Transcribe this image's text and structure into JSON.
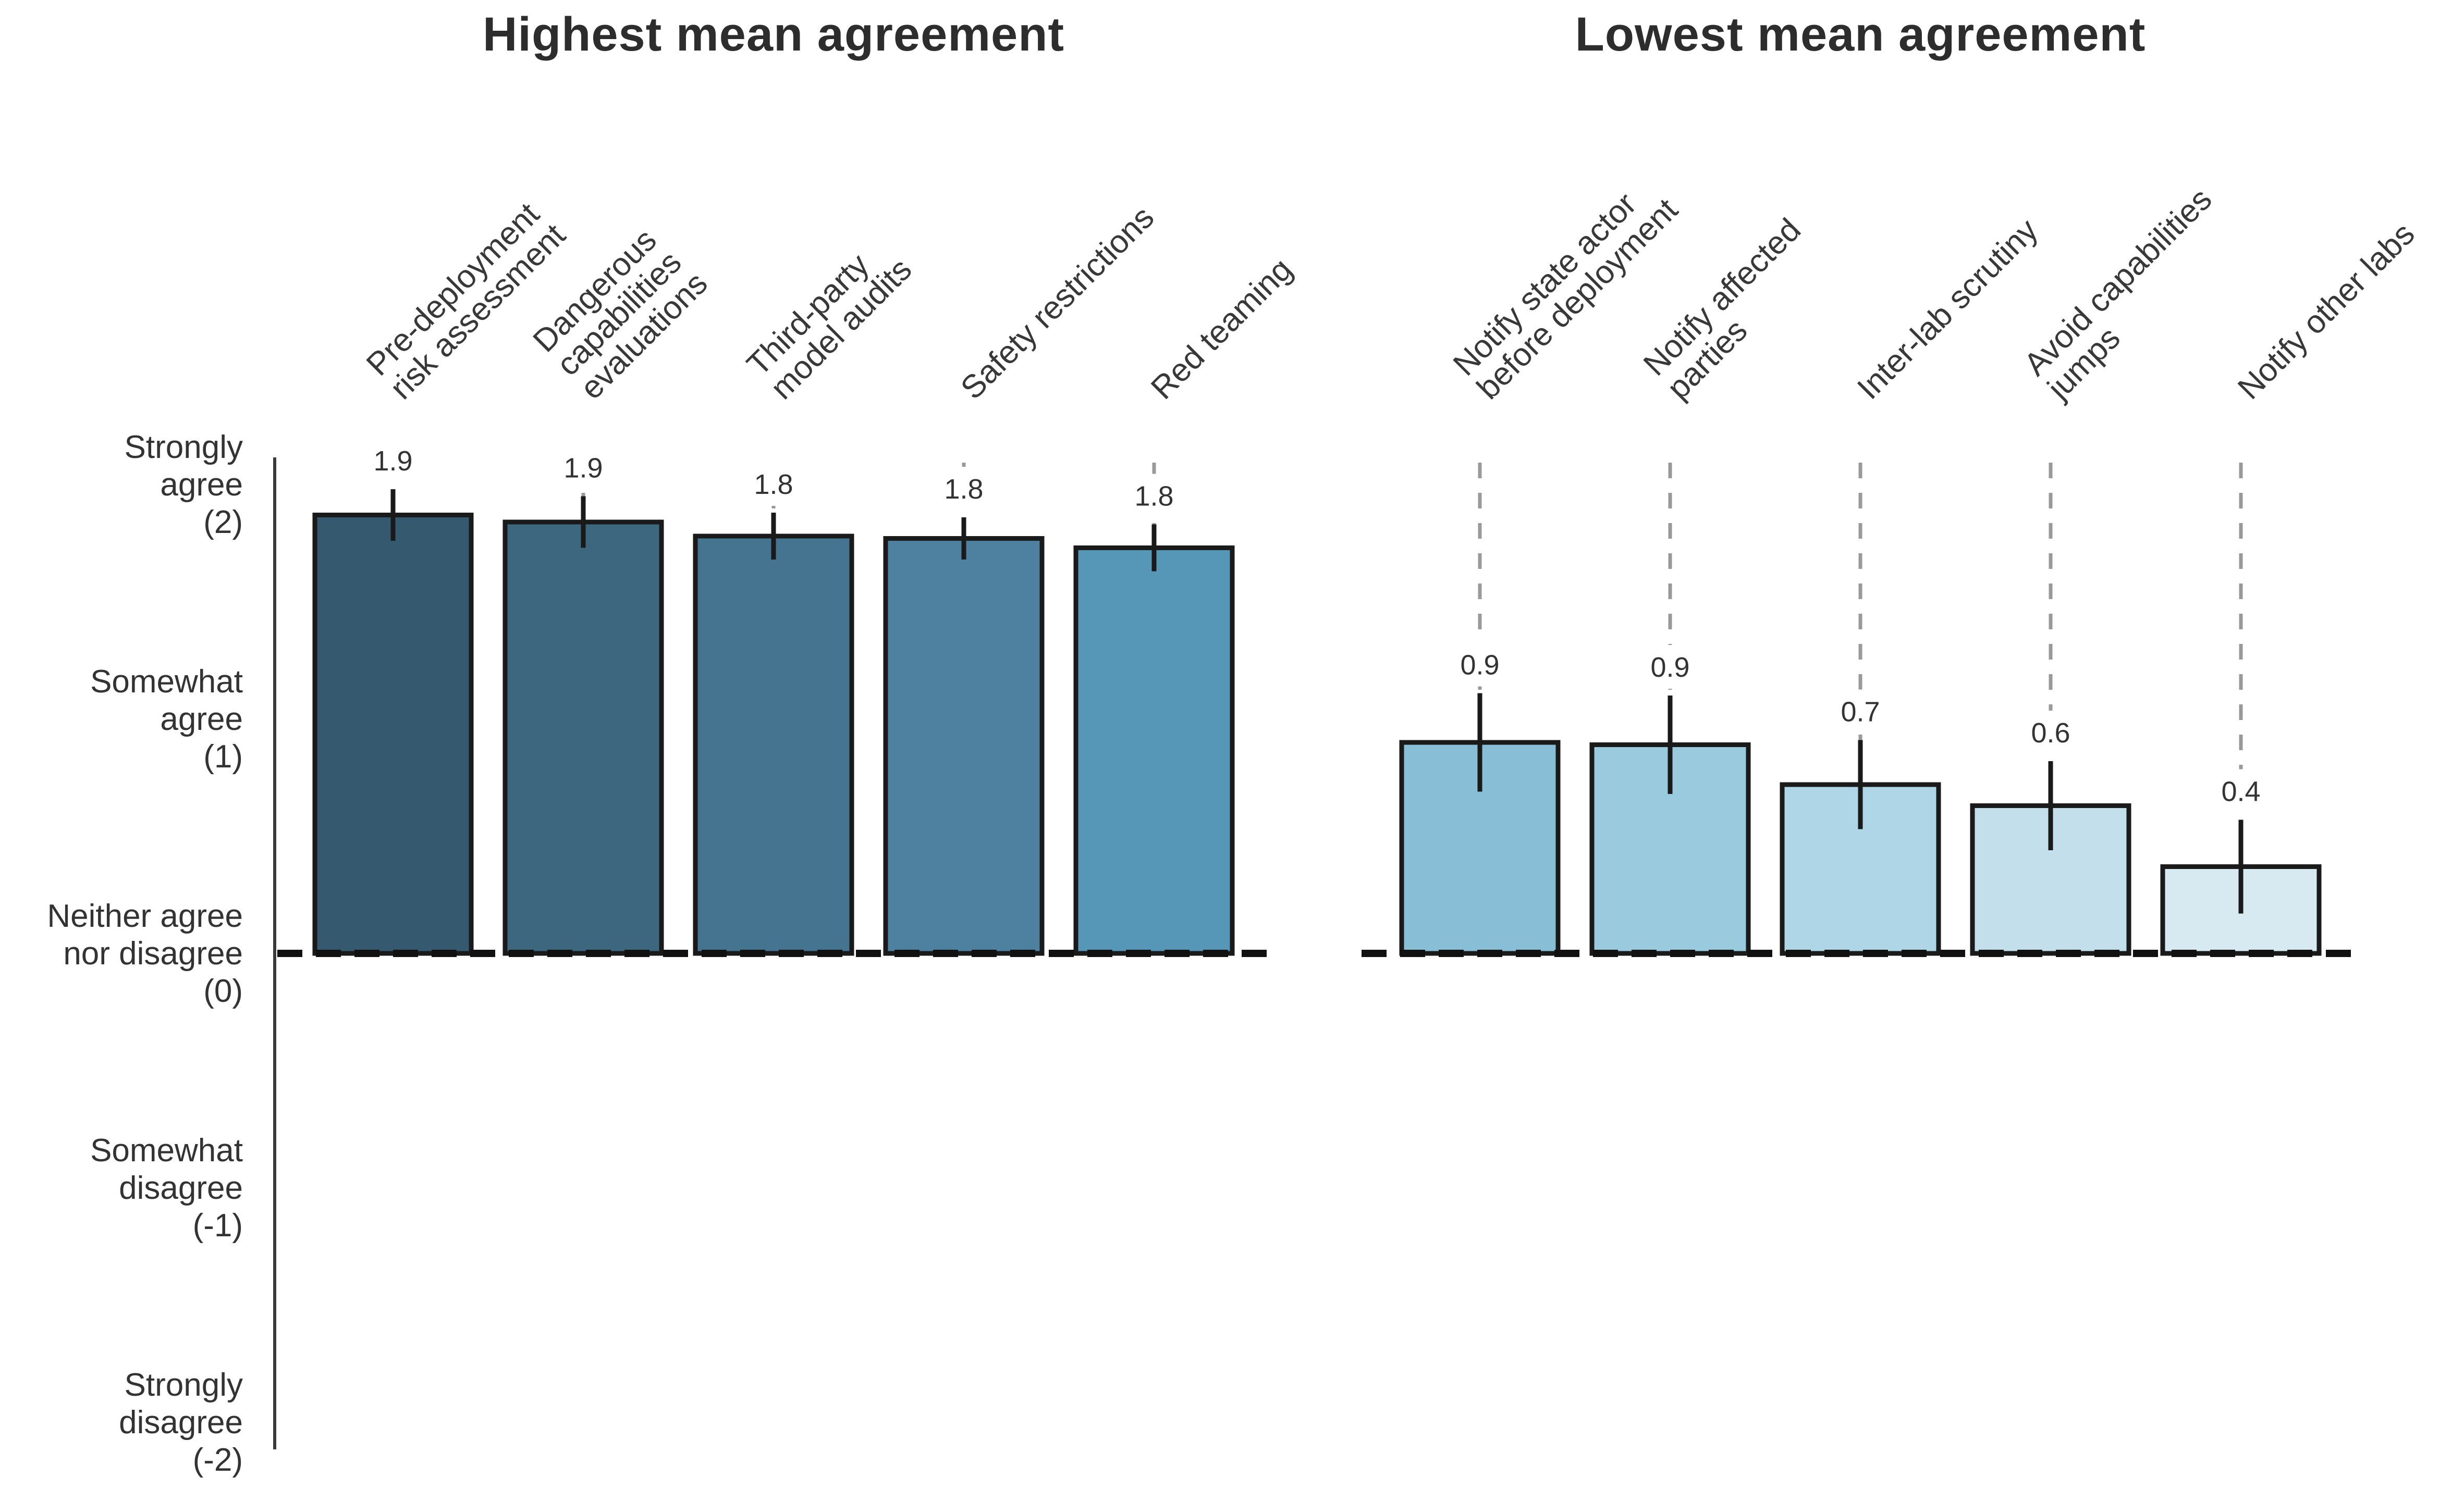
{
  "page": {
    "background": "#ffffff"
  },
  "chart_data": {
    "type": "bar",
    "layout": "two-panel horizontal, shared likert y-axis on left, grid off, no legend",
    "y_axis": {
      "ylim": [
        -2.15,
        2.15
      ],
      "baseline": 0,
      "ticks": [
        {
          "value": 2,
          "lines": [
            "Strongly",
            "agree",
            "(2)"
          ]
        },
        {
          "value": 1,
          "lines": [
            "Somewhat",
            "agree",
            "(1)"
          ]
        },
        {
          "value": 0,
          "lines": [
            "Neither agree",
            "nor disagree",
            "(0)"
          ]
        },
        {
          "value": -1,
          "lines": [
            "Somewhat",
            "disagree",
            "(-1)"
          ]
        },
        {
          "value": -2,
          "lines": [
            "Strongly",
            "disagree",
            "(-2)"
          ]
        }
      ]
    },
    "panels": [
      {
        "title": "Highest mean agreement",
        "bars": [
          {
            "category_lines": [
              "Pre-deployment",
              "risk assessment"
            ],
            "value": 1.9,
            "value_label": "1.9",
            "plot_value": 1.87,
            "error": 0.11,
            "color": "#35596e"
          },
          {
            "category_lines": [
              "Dangerous",
              "capabilities",
              "evaluations"
            ],
            "value": 1.9,
            "value_label": "1.9",
            "plot_value": 1.84,
            "error": 0.11,
            "color": "#3c677f"
          },
          {
            "category_lines": [
              "Third-party",
              "model audits"
            ],
            "value": 1.8,
            "value_label": "1.8",
            "plot_value": 1.78,
            "error": 0.1,
            "color": "#447490"
          },
          {
            "category_lines": [
              "Safety restrictions"
            ],
            "value": 1.8,
            "value_label": "1.8",
            "plot_value": 1.77,
            "error": 0.09,
            "color": "#4e81a0"
          },
          {
            "category_lines": [
              "Red teaming"
            ],
            "value": 1.8,
            "value_label": "1.8",
            "plot_value": 1.73,
            "error": 0.1,
            "color": "#5697b8"
          }
        ]
      },
      {
        "title": "Lowest mean agreement",
        "bars": [
          {
            "category_lines": [
              "Notify state actor",
              "before deployment"
            ],
            "value": 0.9,
            "value_label": "0.9",
            "plot_value": 0.9,
            "error": 0.21,
            "color": "#89bed7"
          },
          {
            "category_lines": [
              "Notify affected",
              "parties"
            ],
            "value": 0.9,
            "value_label": "0.9",
            "plot_value": 0.89,
            "error": 0.21,
            "color": "#9acade"
          },
          {
            "category_lines": [
              "Inter-lab scrutiny"
            ],
            "value": 0.7,
            "value_label": "0.7",
            "plot_value": 0.72,
            "error": 0.19,
            "color": "#aed6e6"
          },
          {
            "category_lines": [
              "Avoid capabilities",
              "jumps"
            ],
            "value": 0.6,
            "value_label": "0.6",
            "plot_value": 0.63,
            "error": 0.19,
            "color": "#c3dfeb"
          },
          {
            "category_lines": [
              "Notify other labs"
            ],
            "value": 0.4,
            "value_label": "0.4",
            "plot_value": 0.37,
            "error": 0.2,
            "color": "#d7e9f1"
          }
        ]
      }
    ],
    "colors": {
      "bar_edge": "#1a1a1a",
      "error_bar": "#1a1a1a",
      "baseline_dash": "#111111",
      "guide_dash": "#999999",
      "axis": "#3a3a3a",
      "title": "#2d2d2d",
      "tick_label": "#333333",
      "category_label": "#383838",
      "value_label": "#333333"
    }
  }
}
